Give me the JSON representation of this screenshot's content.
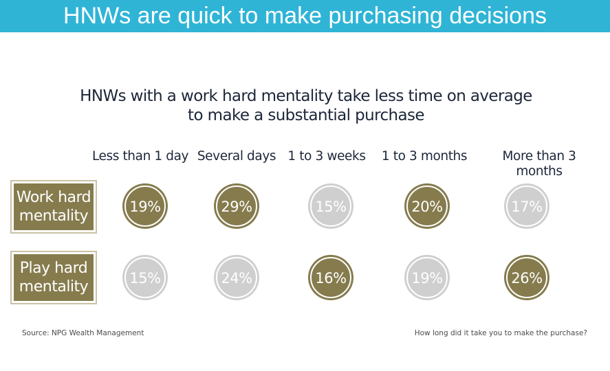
{
  "header": {
    "title": "HNWs are quick to make purchasing decisions"
  },
  "colors": {
    "header_bg": "#2fb4d6",
    "highlight": "#857b4d",
    "muted": "#cfcfcf",
    "text": "#1c2638"
  },
  "chart_data": {
    "type": "table",
    "title": "HNWs with a work hard mentality take less time on average to make a substantial purchase",
    "title_lines": [
      "HNWs with a work hard mentality take less time on average",
      "to make a substantial purchase"
    ],
    "categories": [
      "Less than 1 day",
      "Several days",
      "1 to 3 weeks",
      "1 to 3 months",
      "More than 3 months"
    ],
    "category_lines": [
      [
        "Less than 1 day"
      ],
      [
        "Several days"
      ],
      [
        "1 to 3 weeks"
      ],
      [
        "1 to 3 months"
      ],
      [
        "More than 3",
        "months"
      ]
    ],
    "unit": "%",
    "series": [
      {
        "name": "Work hard mentality",
        "name_lines": [
          "Work hard",
          "mentality"
        ],
        "values": [
          19,
          29,
          15,
          20,
          17
        ],
        "highlighted": [
          true,
          true,
          false,
          true,
          false
        ]
      },
      {
        "name": "Play hard mentality",
        "name_lines": [
          "Play hard",
          "mentality"
        ],
        "values": [
          15,
          24,
          16,
          19,
          26
        ],
        "highlighted": [
          false,
          false,
          true,
          false,
          true
        ]
      }
    ]
  },
  "footer": {
    "source": "Source: NPG Wealth Management",
    "question": "How long did it take you to make the purchase?"
  }
}
